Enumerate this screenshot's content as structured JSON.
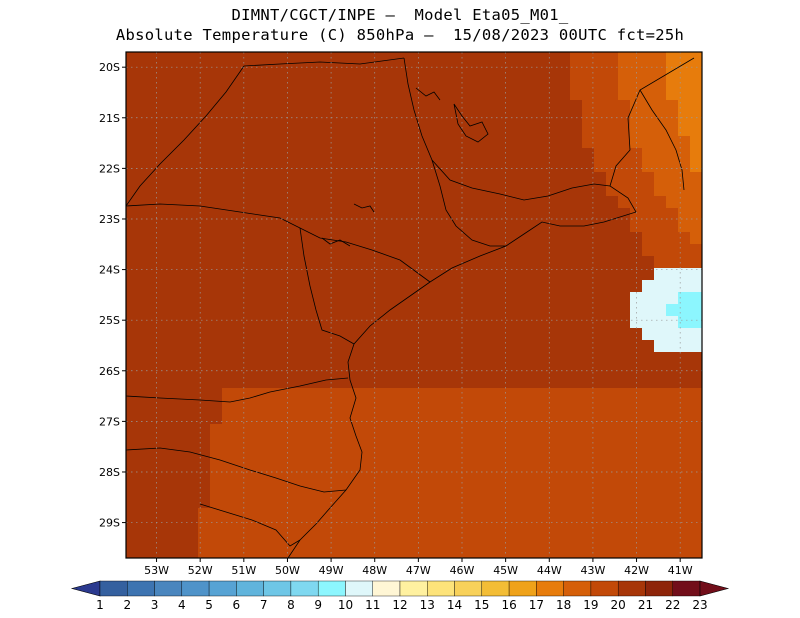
{
  "header": {
    "line1": "DIMNT/CGCT/INPE –  Model Eta05_M01_",
    "line2": "Absolute Temperature (C) 850hPa –  15/08/2023 00UTC fct=25h"
  },
  "map": {
    "lon_range": [
      -53.7,
      -40.5
    ],
    "lat_range": [
      -29.7,
      -19.7
    ],
    "lat_ticks": [
      {
        "value": -20,
        "label": "20S"
      },
      {
        "value": -21,
        "label": "21S"
      },
      {
        "value": -22,
        "label": "22S"
      },
      {
        "value": -23,
        "label": "23S"
      },
      {
        "value": -24,
        "label": "24S"
      },
      {
        "value": -25,
        "label": "25S"
      },
      {
        "value": -26,
        "label": "26S"
      },
      {
        "value": -27,
        "label": "27S"
      },
      {
        "value": -28,
        "label": "28S"
      },
      {
        "value": -29,
        "label": "29S"
      }
    ],
    "lon_ticks": [
      {
        "value": -53,
        "label": "53W"
      },
      {
        "value": -52,
        "label": "52W"
      },
      {
        "value": -51,
        "label": "51W"
      },
      {
        "value": -50,
        "label": "50W"
      },
      {
        "value": -49,
        "label": "49W"
      },
      {
        "value": -48,
        "label": "48W"
      },
      {
        "value": -47,
        "label": "47W"
      },
      {
        "value": -46,
        "label": "46W"
      },
      {
        "value": -45,
        "label": "45W"
      },
      {
        "value": -44,
        "label": "44W"
      },
      {
        "value": -43,
        "label": "43W"
      },
      {
        "value": -42,
        "label": "42W"
      },
      {
        "value": -41,
        "label": "41W"
      }
    ],
    "grid": "dotted",
    "field": {
      "variable": "temperature_850hPa",
      "inland_warm_max": 21.5,
      "offshore_cool_min": 11.5,
      "coldest_spot": {
        "lon": -40.8,
        "lat": -24.8,
        "value": 10.5
      }
    }
  },
  "colorbar": {
    "labels": [
      "1",
      "2",
      "3",
      "4",
      "5",
      "6",
      "7",
      "8",
      "9",
      "10",
      "11",
      "12",
      "13",
      "14",
      "15",
      "16",
      "17",
      "18",
      "19",
      "20",
      "21",
      "22",
      "23"
    ],
    "colors": [
      "#2b3a8f",
      "#34609f",
      "#3d74b1",
      "#4a86be",
      "#4f93c9",
      "#57a3d4",
      "#60b4dc",
      "#6ec6e6",
      "#7fd8f0",
      "#8cf6fe",
      "#dff7fa",
      "#fff6d5",
      "#fff1a0",
      "#fde37a",
      "#f8d15a",
      "#f3bd36",
      "#efa21a",
      "#e77c0c",
      "#d55f09",
      "#c24908",
      "#a73608",
      "#8e250a",
      "#720e1a"
    ]
  }
}
